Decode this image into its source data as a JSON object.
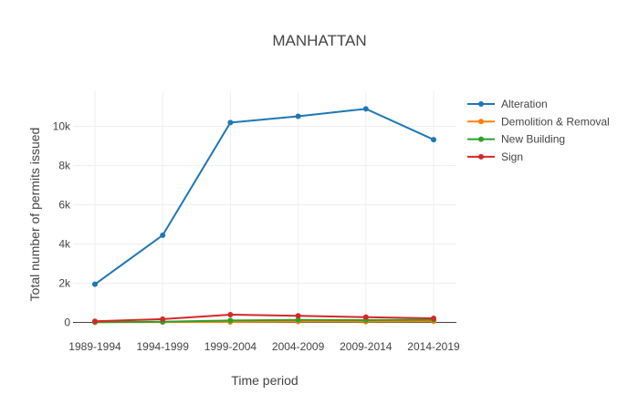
{
  "chart_data": {
    "type": "line",
    "title": "MANHATTAN",
    "xlabel": "Time period",
    "ylabel": "Total number of permits issued",
    "categories": [
      "1989-1994",
      "1994-1999",
      "1999-2004",
      "2004-2009",
      "2009-2014",
      "2014-2019"
    ],
    "ylim": [
      -300,
      11800
    ],
    "yticks": [
      0,
      2000,
      4000,
      6000,
      8000,
      10000
    ],
    "ytick_labels": [
      "0",
      "2k",
      "4k",
      "6k",
      "8k",
      "10k"
    ],
    "grid": true,
    "legend_position": "top-right",
    "series": [
      {
        "name": "Alteration",
        "color": "#1f77b4",
        "values": [
          1950,
          4450,
          10200,
          10520,
          10900,
          9330
        ]
      },
      {
        "name": "Demolition & Removal",
        "color": "#ff7f0e",
        "values": [
          10,
          20,
          25,
          50,
          45,
          60
        ]
      },
      {
        "name": "New Building",
        "color": "#2ca02c",
        "values": [
          20,
          40,
          100,
          130,
          120,
          140
        ]
      },
      {
        "name": "Sign",
        "color": "#d62728",
        "values": [
          60,
          170,
          400,
          340,
          270,
          210
        ]
      }
    ]
  }
}
